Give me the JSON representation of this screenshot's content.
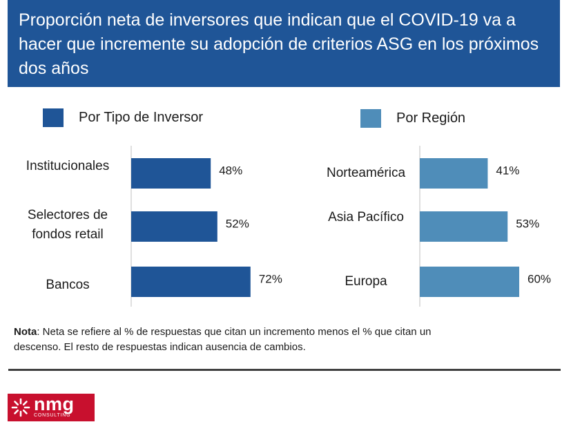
{
  "title": "Proporción neta de inversores que indican que el COVID-19 va a hacer que incremente su adopción de criterios ASG en los próximos dos años",
  "note": {
    "label": "Nota",
    "text": ": Neta se refiere al % de respuestas que citan un incremento menos el % que citan un descenso. El resto de respuestas indican ausencia de cambios."
  },
  "logo": {
    "main": "nmg",
    "sub": "CONSULTING"
  },
  "chart_data": [
    {
      "type": "bar",
      "orientation": "horizontal",
      "legend": "Por Tipo de Inversor",
      "color": "#1F5597",
      "categories": [
        "Institucionales",
        "Selectores de fondos retail",
        "Bancos"
      ],
      "category_lines": [
        [
          "Institucionales"
        ],
        [
          "Selectores de",
          "fondos retail"
        ],
        [
          "Bancos"
        ]
      ],
      "values": [
        48,
        52,
        72
      ],
      "value_labels": [
        "48%",
        "52%",
        "72%"
      ],
      "xlim": [
        0,
        100
      ]
    },
    {
      "type": "bar",
      "orientation": "horizontal",
      "legend": "Por Región",
      "color": "#4F8DB9",
      "categories": [
        "Norteamérica",
        "Asia Pacífico",
        "Europa"
      ],
      "category_lines": [
        [
          "Norteamérica"
        ],
        [
          "Asia Pacífico"
        ],
        [
          "Europa"
        ]
      ],
      "values": [
        41,
        53,
        60
      ],
      "value_labels": [
        "41%",
        "53%",
        "60%"
      ],
      "xlim": [
        0,
        100
      ]
    }
  ]
}
